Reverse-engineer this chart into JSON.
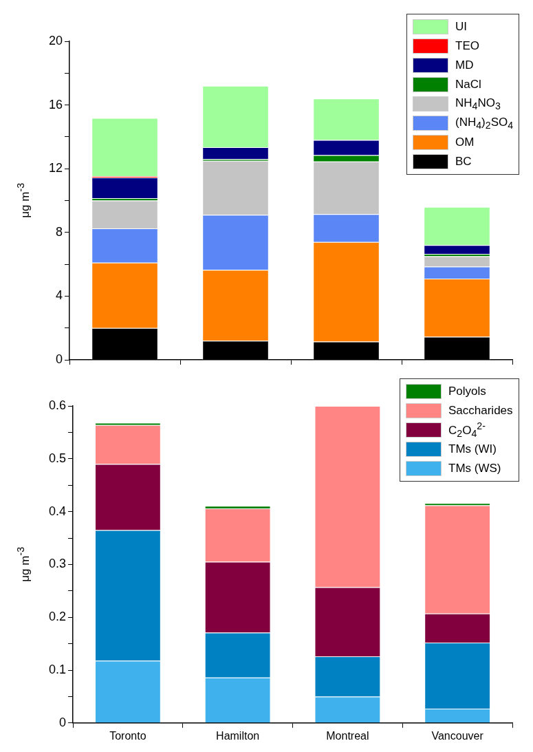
{
  "chart_data": [
    {
      "type": "bar",
      "stacked": true,
      "categories": [
        null,
        null,
        null,
        null
      ],
      "ylabel": "μg m$^{-3}$",
      "ylim": [
        0,
        20
      ],
      "yticks": [
        0,
        {
          "value": 2,
          "label": null
        },
        4,
        {
          "value": 6,
          "label": null
        },
        8,
        {
          "value": 10,
          "label": null
        },
        12,
        {
          "value": 14,
          "label": null
        },
        16,
        {
          "value": 18,
          "label": null
        },
        20
      ],
      "tick_labels": "y",
      "legend": "top right",
      "grid": false,
      "series": [
        {
          "name": "BC",
          "color": "#000000",
          "values": [
            2.0,
            1.2,
            1.15,
            1.45
          ]
        },
        {
          "name": "OM",
          "color": "#ff8000",
          "values": [
            4.1,
            4.45,
            6.25,
            3.65
          ]
        },
        {
          "name": "(NH$_{4}$)$_{2}$SO$_{4}$",
          "color": "#5b86f5",
          "values": [
            2.15,
            3.45,
            1.75,
            0.75
          ]
        },
        {
          "name": "NH$_{4}$NO$_{3}$",
          "color": "#c4c4c4",
          "values": [
            1.75,
            3.4,
            3.3,
            0.65
          ]
        },
        {
          "name": "NaCl",
          "color": "#008000",
          "values": [
            0.15,
            0.1,
            0.4,
            0.15
          ]
        },
        {
          "name": "MD",
          "color": "#000080",
          "values": [
            1.3,
            0.75,
            0.95,
            0.55
          ]
        },
        {
          "name": "TEO",
          "color": "#ff0000",
          "values": [
            0.08,
            0,
            0,
            0
          ]
        },
        {
          "name": "UI",
          "color": "#9ffd9a",
          "values": [
            3.65,
            3.85,
            2.6,
            2.4
          ]
        }
      ]
    },
    {
      "type": "bar",
      "stacked": true,
      "categories": [
        "Toronto",
        "Hamilton",
        "Montreal",
        "Vancouver"
      ],
      "ylabel": "μg m$^{-3}$",
      "ylim": [
        0,
        0.6
      ],
      "yticks": [
        0.0,
        {
          "value": 0.05,
          "label": null
        },
        0.1,
        {
          "value": 0.15,
          "label": null
        },
        0.2,
        {
          "value": 0.25,
          "label": null
        },
        0.3,
        {
          "value": 0.35,
          "label": null
        },
        0.4,
        {
          "value": 0.45,
          "label": null
        },
        0.5,
        {
          "value": 0.55,
          "label": null
        },
        0.6
      ],
      "legend": "top right",
      "grid": false,
      "series": [
        {
          "name": "TMs (WS)",
          "color": "#3fb2ee",
          "values": [
            0.118,
            0.086,
            0.05,
            0.027
          ]
        },
        {
          "name": "TMs (WI)",
          "color": "#0081c2",
          "values": [
            0.247,
            0.085,
            0.076,
            0.125
          ]
        },
        {
          "name": "C$_{2}$O$_{4}$$^{2-}$",
          "color": "#83003f",
          "values": [
            0.125,
            0.134,
            0.131,
            0.055
          ]
        },
        {
          "name": "Saccharides",
          "color": "#ff8484",
          "values": [
            0.074,
            0.101,
            0.343,
            0.205
          ]
        },
        {
          "name": "Polyols",
          "color": "#008000",
          "values": [
            0.004,
            0.005,
            0,
            0.004
          ]
        }
      ]
    }
  ]
}
